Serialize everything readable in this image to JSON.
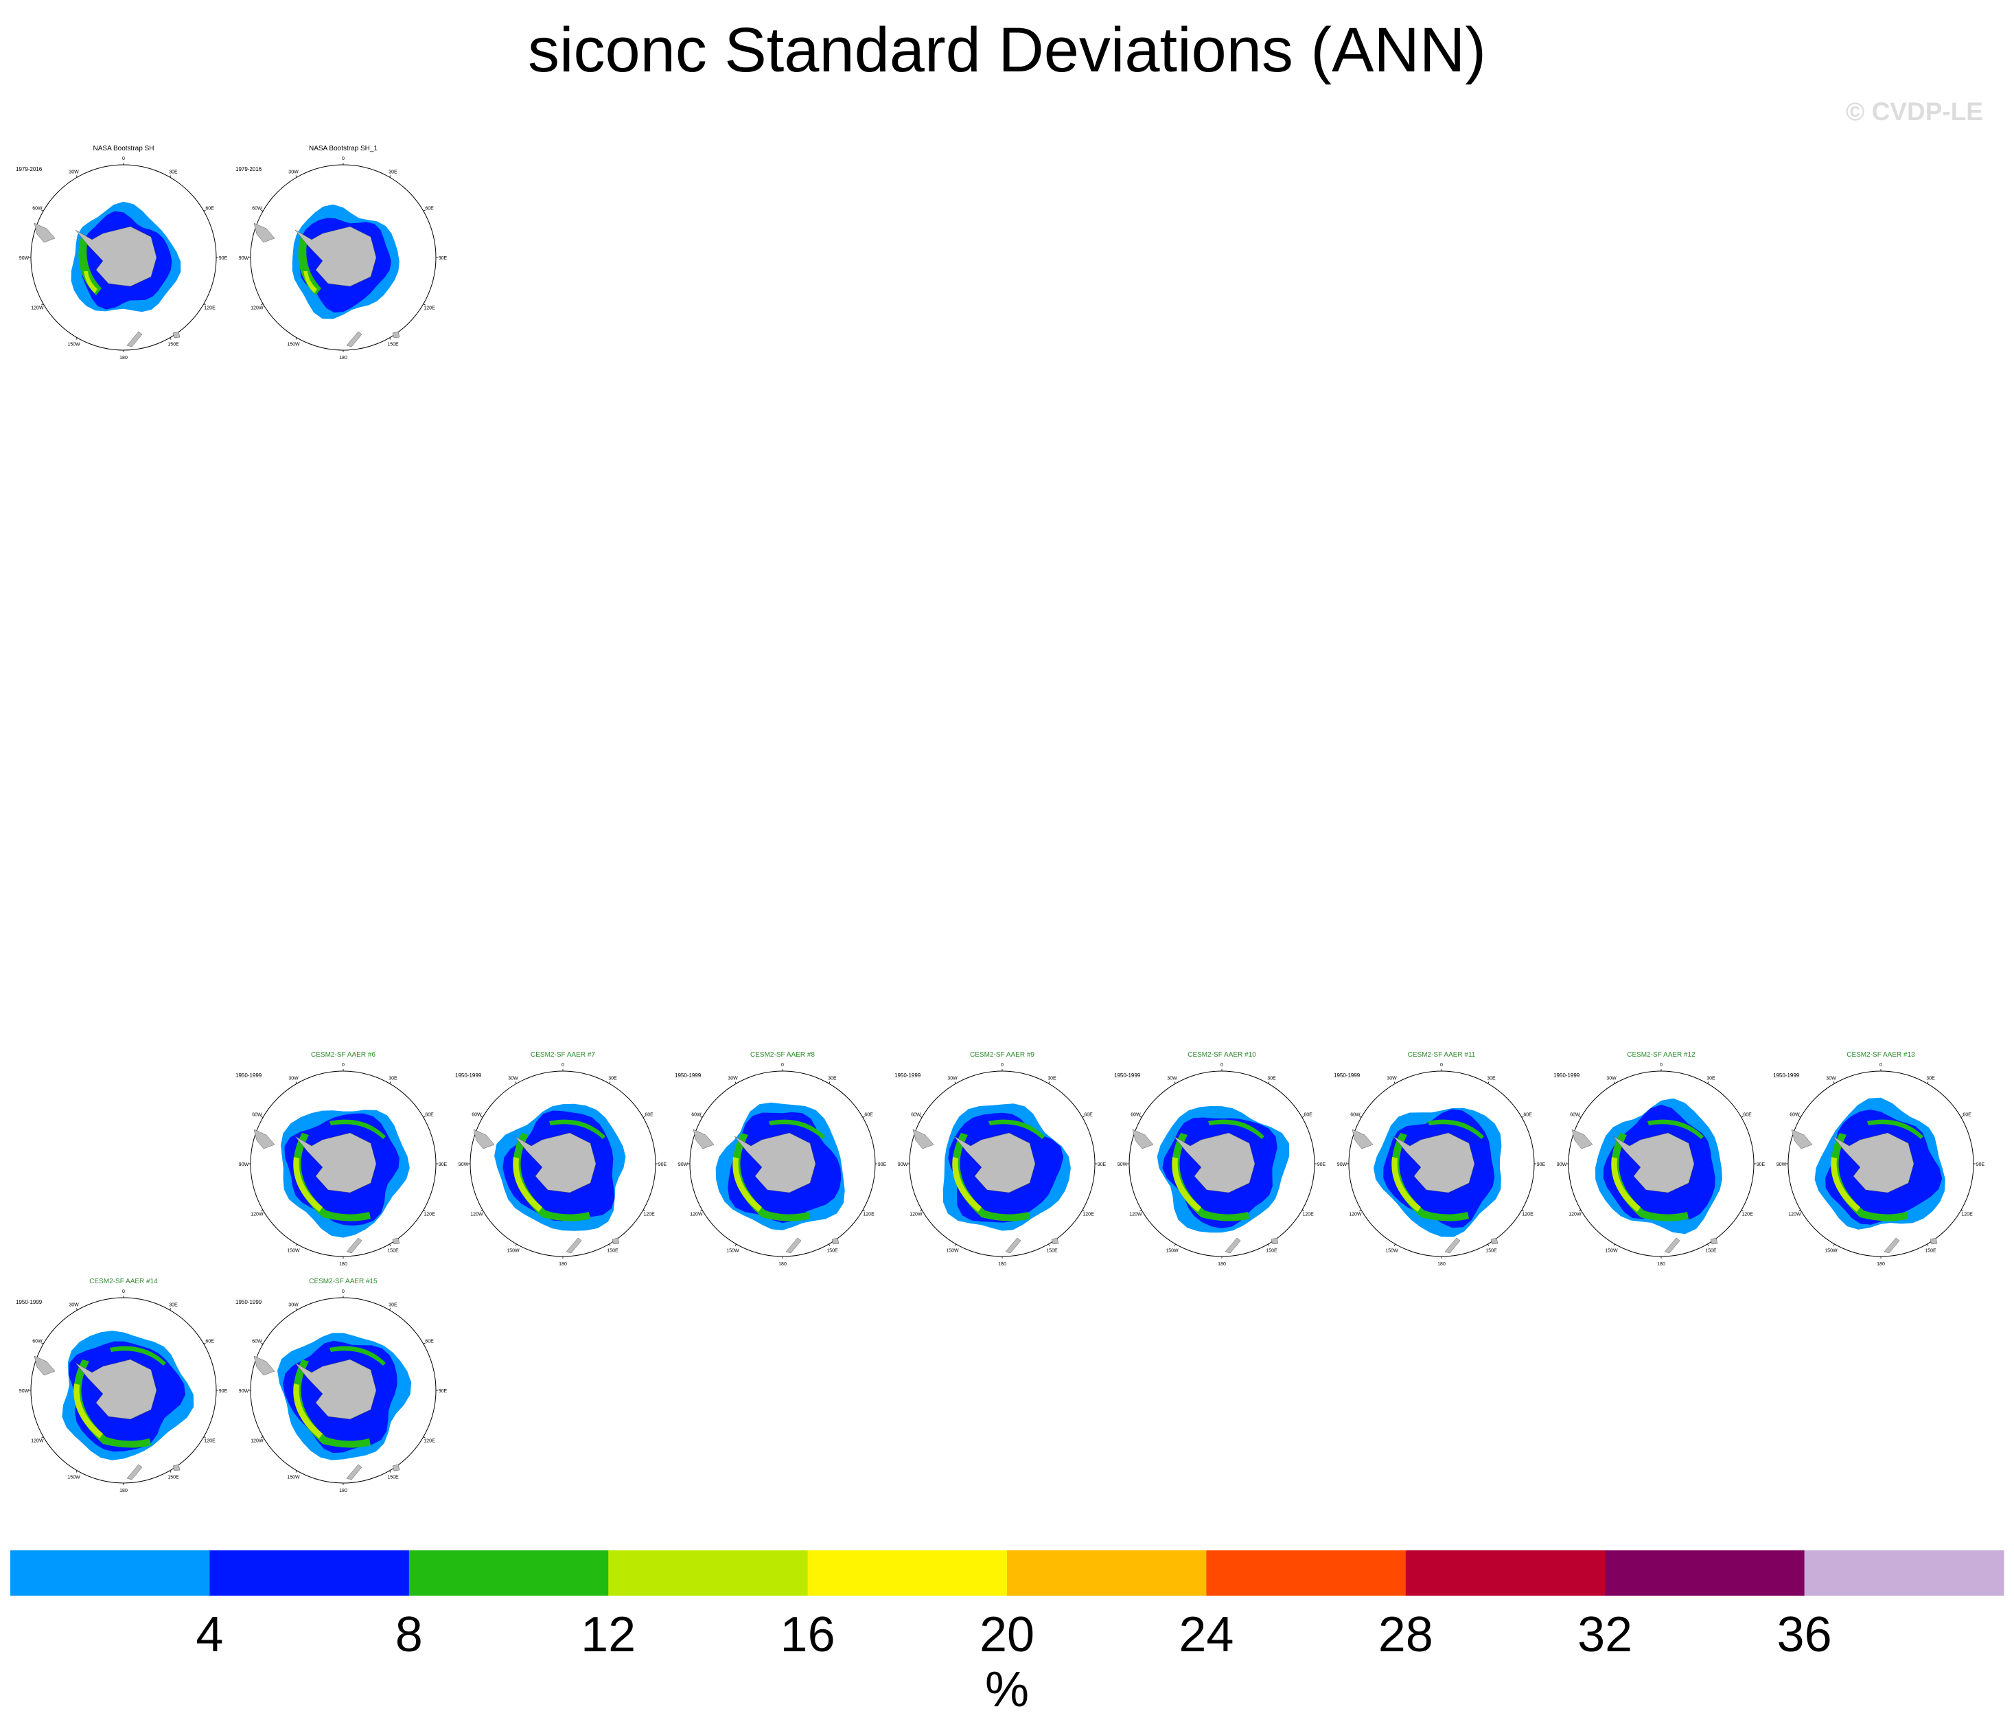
{
  "title": "siconc Standard Deviations (ANN)",
  "copyright": "© CVDP-LE",
  "lon_labels": [
    "0",
    "30E",
    "60E",
    "90E",
    "120E",
    "150E",
    "180",
    "150W",
    "120W",
    "90W",
    "60W",
    "30W"
  ],
  "panels": [
    {
      "name": "NASA Bootstrap SH",
      "period": "1979-2016",
      "title_color": "#000000",
      "row": 0,
      "col": 0,
      "obs": true
    },
    {
      "name": "NASA Bootstrap SH_1",
      "period": "1979-2016",
      "title_color": "#000000",
      "row": 0,
      "col": 1,
      "obs": true
    },
    {
      "name": "CESM2-SF AAER #6",
      "period": "1950-1999",
      "title_color": "#2e8b2e",
      "row": 1,
      "col": 1,
      "obs": false
    },
    {
      "name": "CESM2-SF AAER #7",
      "period": "1950-1999",
      "title_color": "#2e8b2e",
      "row": 1,
      "col": 2,
      "obs": false
    },
    {
      "name": "CESM2-SF AAER #8",
      "period": "1950-1999",
      "title_color": "#2e8b2e",
      "row": 1,
      "col": 3,
      "obs": false
    },
    {
      "name": "CESM2-SF AAER #9",
      "period": "1950-1999",
      "title_color": "#2e8b2e",
      "row": 1,
      "col": 4,
      "obs": false
    },
    {
      "name": "CESM2-SF AAER #10",
      "period": "1950-1999",
      "title_color": "#2e8b2e",
      "row": 1,
      "col": 5,
      "obs": false
    },
    {
      "name": "CESM2-SF AAER #11",
      "period": "1950-1999",
      "title_color": "#2e8b2e",
      "row": 1,
      "col": 6,
      "obs": false
    },
    {
      "name": "CESM2-SF AAER #12",
      "period": "1950-1999",
      "title_color": "#2e8b2e",
      "row": 1,
      "col": 7,
      "obs": false
    },
    {
      "name": "CESM2-SF AAER #13",
      "period": "1950-1999",
      "title_color": "#2e8b2e",
      "row": 1,
      "col": 8,
      "obs": false
    },
    {
      "name": "CESM2-SF AAER #14",
      "period": "1950-1999",
      "title_color": "#2e8b2e",
      "row": 2,
      "col": 0,
      "obs": false
    },
    {
      "name": "CESM2-SF AAER #15",
      "period": "1950-1999",
      "title_color": "#2e8b2e",
      "row": 2,
      "col": 1,
      "obs": false
    }
  ],
  "chart_data": {
    "type": "heatmap",
    "title": "siconc Standard Deviations (ANN)",
    "projection": "south polar stereographic",
    "colorbar": {
      "label": "%",
      "ticks": [
        4,
        8,
        12,
        16,
        20,
        24,
        28,
        32,
        36
      ],
      "tick_labels": [
        "4",
        "8",
        "12",
        "16",
        "20",
        "24",
        "28",
        "32",
        "36"
      ],
      "bin_colors": [
        "#0099ff",
        "#0018ff",
        "#22bb11",
        "#bbea00",
        "#fff500",
        "#ffbb00",
        "#ff4a00",
        "#bb0030",
        "#800060",
        "#c8aed8"
      ]
    },
    "land_color": "#bdbdbd"
  }
}
